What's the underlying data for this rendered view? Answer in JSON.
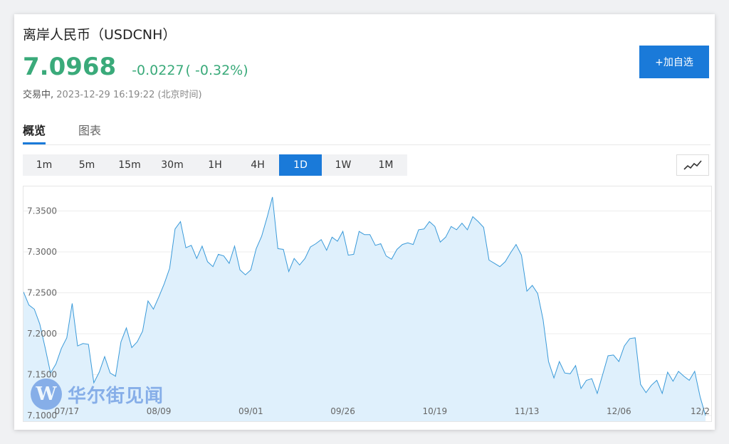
{
  "header": {
    "title": "离岸人民币（USDCNH）",
    "price": "7.0968",
    "change": "-0.0227",
    "change_pct": "( -0.32%)",
    "status": "交易中,",
    "timestamp": "2023-12-29 16:19:22 (北京时间)",
    "add_watchlist": "+加自选"
  },
  "tabs": [
    {
      "label": "概览",
      "active": true
    },
    {
      "label": "图表",
      "active": false
    }
  ],
  "periods": [
    {
      "label": "1m",
      "active": false
    },
    {
      "label": "5m",
      "active": false
    },
    {
      "label": "15m",
      "active": false
    },
    {
      "label": "30m",
      "active": false
    },
    {
      "label": "1H",
      "active": false
    },
    {
      "label": "4H",
      "active": false
    },
    {
      "label": "1D",
      "active": true
    },
    {
      "label": "1W",
      "active": false
    },
    {
      "label": "1M",
      "active": false
    }
  ],
  "chart_type_icon": "line-chart-icon",
  "watermark": {
    "logo": "W",
    "text": "华尔街见闻"
  },
  "colors": {
    "up_green": "#3aaa7a",
    "accent_blue": "#1a7ad9",
    "line": "#3a9ad9",
    "area": "#dff0fc"
  },
  "chart_data": {
    "type": "area",
    "title": "",
    "xlabel": "",
    "ylabel": "",
    "ylim": [
      7.093,
      7.38
    ],
    "y_ticks": [
      "7.1000",
      "7.1500",
      "7.2000",
      "7.2500",
      "7.3000",
      "7.3500"
    ],
    "x_ticks": [
      {
        "label": "07/17",
        "index": 8
      },
      {
        "label": "08/09",
        "index": 25
      },
      {
        "label": "09/01",
        "index": 42
      },
      {
        "label": "09/26",
        "index": 59
      },
      {
        "label": "10/19",
        "index": 76
      },
      {
        "label": "11/13",
        "index": 93
      },
      {
        "label": "12/06",
        "index": 110
      },
      {
        "label": "12/2",
        "index": 126
      }
    ],
    "grid": true,
    "series": [
      {
        "values": [
          7.251,
          7.235,
          7.23,
          7.212,
          7.183,
          7.152,
          7.163,
          7.182,
          7.195,
          7.237,
          7.185,
          7.188,
          7.187,
          7.14,
          7.153,
          7.172,
          7.152,
          7.148,
          7.19,
          7.207,
          7.183,
          7.19,
          7.203,
          7.24,
          7.23,
          7.245,
          7.261,
          7.28,
          7.328,
          7.337,
          7.305,
          7.308,
          7.292,
          7.307,
          7.288,
          7.282,
          7.297,
          7.295,
          7.286,
          7.307,
          7.278,
          7.272,
          7.278,
          7.304,
          7.319,
          7.342,
          7.367,
          7.304,
          7.303,
          7.276,
          7.292,
          7.284,
          7.292,
          7.306,
          7.31,
          7.315,
          7.302,
          7.318,
          7.313,
          7.325,
          7.296,
          7.297,
          7.325,
          7.321,
          7.321,
          7.308,
          7.31,
          7.295,
          7.291,
          7.303,
          7.309,
          7.311,
          7.309,
          7.327,
          7.328,
          7.337,
          7.331,
          7.312,
          7.318,
          7.331,
          7.327,
          7.335,
          7.327,
          7.343,
          7.337,
          7.33,
          7.29,
          7.286,
          7.282,
          7.288,
          7.299,
          7.309,
          7.296,
          7.252,
          7.259,
          7.249,
          7.217,
          7.166,
          7.146,
          7.166,
          7.152,
          7.151,
          7.161,
          7.133,
          7.143,
          7.145,
          7.127,
          7.15,
          7.173,
          7.174,
          7.166,
          7.185,
          7.194,
          7.195,
          7.138,
          7.128,
          7.137,
          7.143,
          7.127,
          7.153,
          7.142,
          7.154,
          7.148,
          7.143,
          7.154,
          7.123,
          7.1
        ]
      }
    ]
  }
}
